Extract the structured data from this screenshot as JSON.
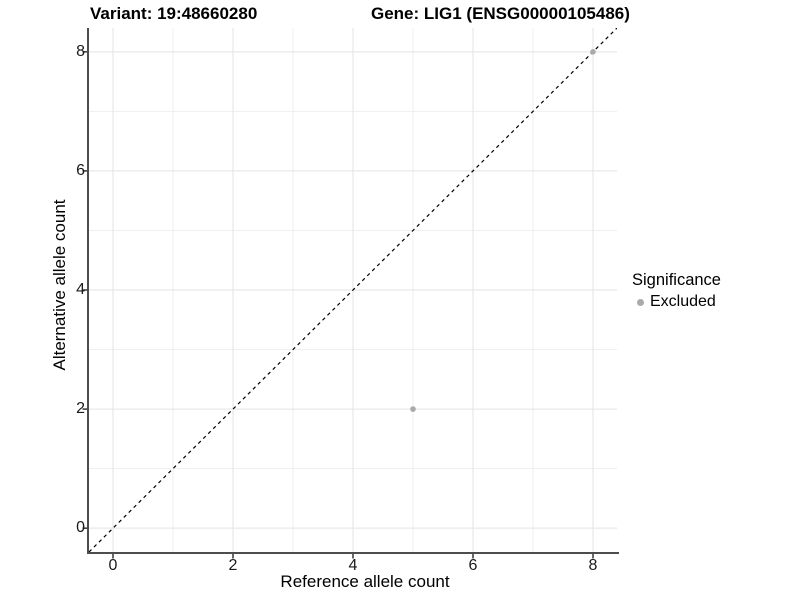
{
  "header": {
    "variant_title": "Variant: 19:48660280",
    "gene_title": "Gene: LIG1 (ENSG00000105486)"
  },
  "legend": {
    "title": "Significance",
    "items": [
      {
        "label": "Excluded",
        "color": "#aaaaaa"
      }
    ]
  },
  "chart_data": {
    "type": "scatter",
    "title": "Variant: 19:48660280 | Gene: LIG1 (ENSG00000105486)",
    "xlabel": "Reference allele count",
    "ylabel": "Alternative allele count",
    "xlim": [
      -0.4,
      8.4
    ],
    "ylim": [
      -0.4,
      8.4
    ],
    "x_ticks": [
      0,
      2,
      4,
      6,
      8
    ],
    "y_ticks": [
      0,
      2,
      4,
      6,
      8
    ],
    "grid_values": [
      0,
      1,
      2,
      3,
      4,
      5,
      6,
      7,
      8
    ],
    "grid": true,
    "legend_position": "right",
    "series": [
      {
        "name": "Excluded",
        "color": "#aaaaaa",
        "points": [
          {
            "x": 5,
            "y": 2
          },
          {
            "x": 8,
            "y": 8
          }
        ]
      }
    ],
    "reference_line": {
      "type": "identity",
      "slope": 1,
      "intercept": 0,
      "style": "dashed",
      "color": "#000000"
    }
  },
  "style": {
    "background": "#ffffff",
    "grid_major_color": "#e3e3e3",
    "grid_minor_color": "#efefef",
    "axis_line_color": "#4d4d4d",
    "tick_mark_color": "#333333",
    "tick_label_color": "#1a1a1a",
    "text_color": "#000000",
    "point_color": "#aaaaaa"
  }
}
